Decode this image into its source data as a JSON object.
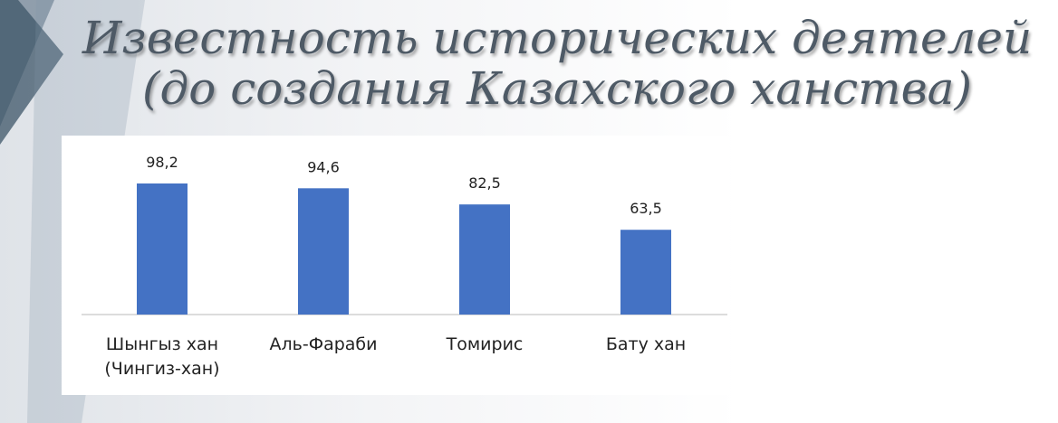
{
  "chart_data": {
    "type": "bar",
    "title": "Известность исторических деятелей (до создания Казахского ханства)",
    "categories": [
      "Шынгыз хан (Чингиз-хан)",
      "Аль-Фараби",
      "Томирис",
      "Бату хан"
    ],
    "values": [
      98.2,
      94.6,
      82.5,
      63.5
    ],
    "value_labels": [
      "98,2",
      "94,6",
      "82,5",
      "63,5"
    ],
    "color": "#4472c4"
  }
}
